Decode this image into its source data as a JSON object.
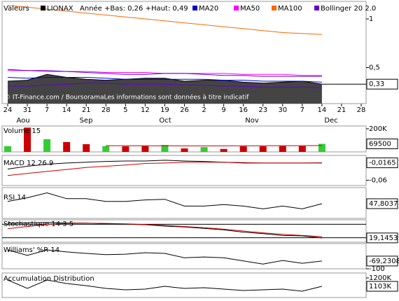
{
  "x_axis": {
    "days": [
      24,
      31,
      7,
      14,
      21,
      28,
      5,
      12,
      19,
      26,
      2,
      9,
      16,
      23,
      30,
      7,
      14,
      21,
      28
    ],
    "months": [
      "Aou",
      "Sep",
      "Oct",
      "Nov",
      "Dec"
    ]
  },
  "chart_data": [
    {
      "type": "line",
      "title": "Valeurs",
      "subtitle": "Année +Bas: 0,26 +Haut: 0,49",
      "source": "© IT-Finance.com / BoursoramaLes informations sont données à titre indicatif",
      "ylim": [
        0.13,
        1.18
      ],
      "yticks": [
        {
          "value": 0.5,
          "label": "0,5"
        },
        1
      ],
      "last_value": {
        "value": 0.33,
        "label": "0,33"
      },
      "series": [
        {
          "name": "LIONAX",
          "color": "#000000",
          "area": true,
          "values": [
            0.36,
            0.37,
            0.43,
            0.4,
            0.38,
            0.37,
            0.38,
            0.39,
            0.39,
            0.36,
            0.37,
            0.37,
            0.35,
            0.34,
            0.35,
            0.36,
            0.33,
            null,
            null
          ]
        },
        {
          "name": "MA20",
          "color": "#0000cc",
          "values": [
            0.4,
            0.39,
            0.4,
            0.4,
            0.4,
            0.39,
            0.38,
            0.38,
            0.38,
            0.38,
            0.38,
            0.37,
            0.37,
            0.36,
            0.36,
            0.36,
            0.35,
            null,
            null
          ]
        },
        {
          "name": "MA50",
          "color": "#ff00ff",
          "values": [
            0.47,
            0.47,
            0.46,
            0.46,
            0.46,
            0.45,
            0.45,
            0.45,
            0.44,
            0.44,
            0.44,
            0.44,
            0.43,
            0.43,
            0.43,
            0.42,
            0.42,
            null,
            null
          ]
        },
        {
          "name": "MA100",
          "color": "#ff6600",
          "values": [
            1.14,
            1.12,
            1.1,
            1.08,
            1.06,
            1.04,
            1.02,
            1.0,
            0.98,
            0.96,
            0.94,
            0.92,
            0.9,
            0.88,
            0.86,
            0.85,
            0.84,
            null,
            null
          ]
        },
        {
          "name": "Bollinger 20 2.0",
          "color": "#6600cc",
          "values": [
            0.48,
            0.47,
            0.47,
            0.46,
            0.45,
            0.44,
            0.43,
            0.43,
            0.44,
            0.44,
            0.43,
            0.42,
            0.42,
            0.41,
            0.41,
            0.41,
            0.41,
            null,
            null
          ],
          "lower": [
            0.31,
            0.31,
            0.32,
            0.33,
            0.34,
            0.34,
            0.33,
            0.33,
            0.33,
            0.32,
            0.32,
            0.31,
            0.31,
            0.3,
            0.3,
            0.3,
            0.29,
            null,
            null
          ]
        }
      ]
    },
    {
      "type": "bar",
      "title": "Volume 15",
      "ylim": [
        0,
        224000
      ],
      "yticks": [
        {
          "value": 200000,
          "label": "200K"
        }
      ],
      "last_value": 69500,
      "series": [
        {
          "values": [
            50000,
            210000,
            110000,
            85000,
            67000,
            50000,
            48000,
            50000,
            60000,
            30000,
            42000,
            25000,
            48000,
            48000,
            50000,
            50000,
            69500,
            null,
            null
          ],
          "colors": [
            "#33cc33",
            "#cc0000",
            "#33cc33",
            "#cc0000",
            "#cc0000",
            "#33cc33",
            "#cc0000",
            "#cc0000",
            "#33cc33",
            "#cc0000",
            "#33cc33",
            "#cc0000",
            "#cc0000",
            "#cc0000",
            "#cc0000",
            "#cc0000",
            "#33cc33",
            null,
            null
          ]
        },
        {
          "type": "line",
          "color": "#cc0000",
          "values": [
            null,
            null,
            null,
            null,
            null,
            54000,
            54000,
            53000,
            53000,
            52000,
            52000,
            52000,
            53000,
            53000,
            54000,
            54000,
            55000,
            null,
            null
          ]
        }
      ]
    },
    {
      "type": "line",
      "title": "MACD 12 26 9",
      "ylim": [
        -0.073,
        0.002
      ],
      "yticks": [
        {
          "value": -0.06,
          "label": "-0,06"
        }
      ],
      "last_value": {
        "value": -0.0165,
        "label": "-0,0165"
      },
      "series": [
        {
          "color": "#000000",
          "values": [
            -0.032,
            -0.025,
            -0.02,
            -0.017,
            -0.015,
            -0.013,
            -0.012,
            -0.012,
            -0.01,
            -0.012,
            -0.013,
            -0.015,
            -0.017,
            -0.017,
            -0.017,
            -0.017,
            -0.0165,
            null,
            null
          ]
        },
        {
          "color": "#cc0000",
          "values": [
            -0.048,
            -0.043,
            -0.038,
            -0.033,
            -0.028,
            -0.025,
            -0.022,
            -0.018,
            -0.017,
            -0.015,
            -0.015,
            -0.015,
            -0.016,
            -0.017,
            -0.017,
            -0.017,
            -0.017,
            null,
            null
          ]
        }
      ]
    },
    {
      "type": "line",
      "title": "RSI 14",
      "ylim": [
        0,
        100
      ],
      "last_value": {
        "value": 47.8037,
        "label": "47,8037"
      },
      "series": [
        {
          "color": "#000000",
          "values": [
            55,
            67,
            83,
            64,
            64,
            55,
            55,
            60,
            62,
            40,
            40,
            45,
            40,
            31,
            40,
            31,
            47.8037,
            null,
            null
          ]
        }
      ]
    },
    {
      "type": "line",
      "title": "Stochastique 14 3 5",
      "ylim": [
        0,
        100
      ],
      "levels": [
        80,
        20
      ],
      "last_value": {
        "value": 19.1453,
        "label": "19,1453"
      },
      "series": [
        {
          "color": "#000000",
          "values": [
            85,
            87,
            88,
            86,
            85,
            82,
            80,
            78,
            72,
            68,
            62,
            55,
            45,
            38,
            30,
            28,
            19.1453,
            null,
            null
          ]
        },
        {
          "color": "#cc0000",
          "values": [
            60,
            70,
            80,
            84,
            85,
            84,
            82,
            79,
            75,
            70,
            65,
            58,
            50,
            42,
            35,
            30,
            25,
            null,
            null
          ]
        }
      ]
    },
    {
      "type": "line",
      "title": "Williams' %R 14",
      "ylim": [
        -100,
        0
      ],
      "yticks": [
        -100
      ],
      "last_value": {
        "value": -69.2308,
        "label": "-69,2308"
      },
      "series": [
        {
          "color": "#000000",
          "values": [
            -25,
            -47,
            -25,
            -33,
            -39,
            -44,
            -42,
            -36,
            -39,
            -56,
            -53,
            -56,
            -69,
            -81,
            -67,
            -78,
            -69.2308,
            null,
            null
          ]
        }
      ]
    },
    {
      "type": "line",
      "title": "Accumulation Distribution",
      "ylim": [
        974000,
        1257000
      ],
      "yticks": [
        {
          "value": 1200000,
          "label": "1200K"
        }
      ],
      "last_value": {
        "value": 1103000,
        "label": "1103K"
      },
      "series": [
        {
          "color": "#000000",
          "values": [
            1176000,
            1079000,
            1176000,
            1136000,
            1111000,
            1079000,
            1063000,
            1071000,
            1103000,
            1079000,
            1087000,
            1071000,
            1055000,
            1063000,
            1071000,
            1047000,
            1103000,
            null,
            null
          ]
        }
      ]
    }
  ]
}
